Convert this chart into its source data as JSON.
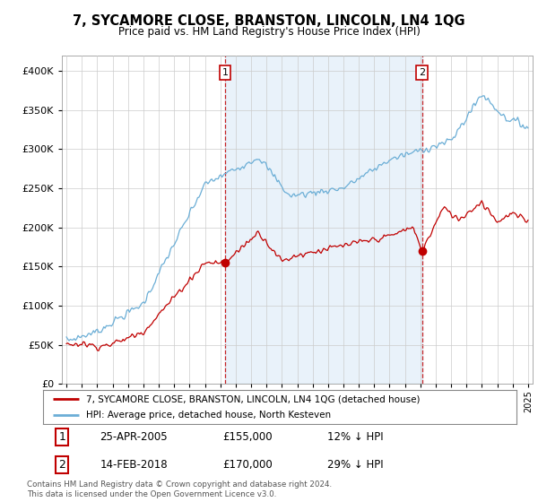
{
  "title": "7, SYCAMORE CLOSE, BRANSTON, LINCOLN, LN4 1QG",
  "subtitle": "Price paid vs. HM Land Registry's House Price Index (HPI)",
  "footer": "Contains HM Land Registry data © Crown copyright and database right 2024.\nThis data is licensed under the Open Government Licence v3.0.",
  "legend_line1": "7, SYCAMORE CLOSE, BRANSTON, LINCOLN, LN4 1QG (detached house)",
  "legend_line2": "HPI: Average price, detached house, North Kesteven",
  "annotation1_label": "1",
  "annotation1_date": "25-APR-2005",
  "annotation1_price": "£155,000",
  "annotation1_hpi": "12% ↓ HPI",
  "annotation2_label": "2",
  "annotation2_date": "14-FEB-2018",
  "annotation2_price": "£170,000",
  "annotation2_hpi": "29% ↓ HPI",
  "hpi_color": "#6baed6",
  "sale_color": "#c00000",
  "annotation_color": "#c00000",
  "shade_color": "#ddeeff",
  "grid_color": "#cccccc",
  "background_color": "#ffffff",
  "ylim": [
    0,
    420000
  ],
  "yticks": [
    0,
    50000,
    100000,
    150000,
    200000,
    250000,
    300000,
    350000,
    400000
  ],
  "sale1_x": 2005.31,
  "sale1_y": 155000,
  "sale2_x": 2018.12,
  "sale2_y": 170000,
  "vline1_x": 2005.31,
  "vline2_x": 2018.12,
  "xlim_left": 1994.7,
  "xlim_right": 2025.3
}
